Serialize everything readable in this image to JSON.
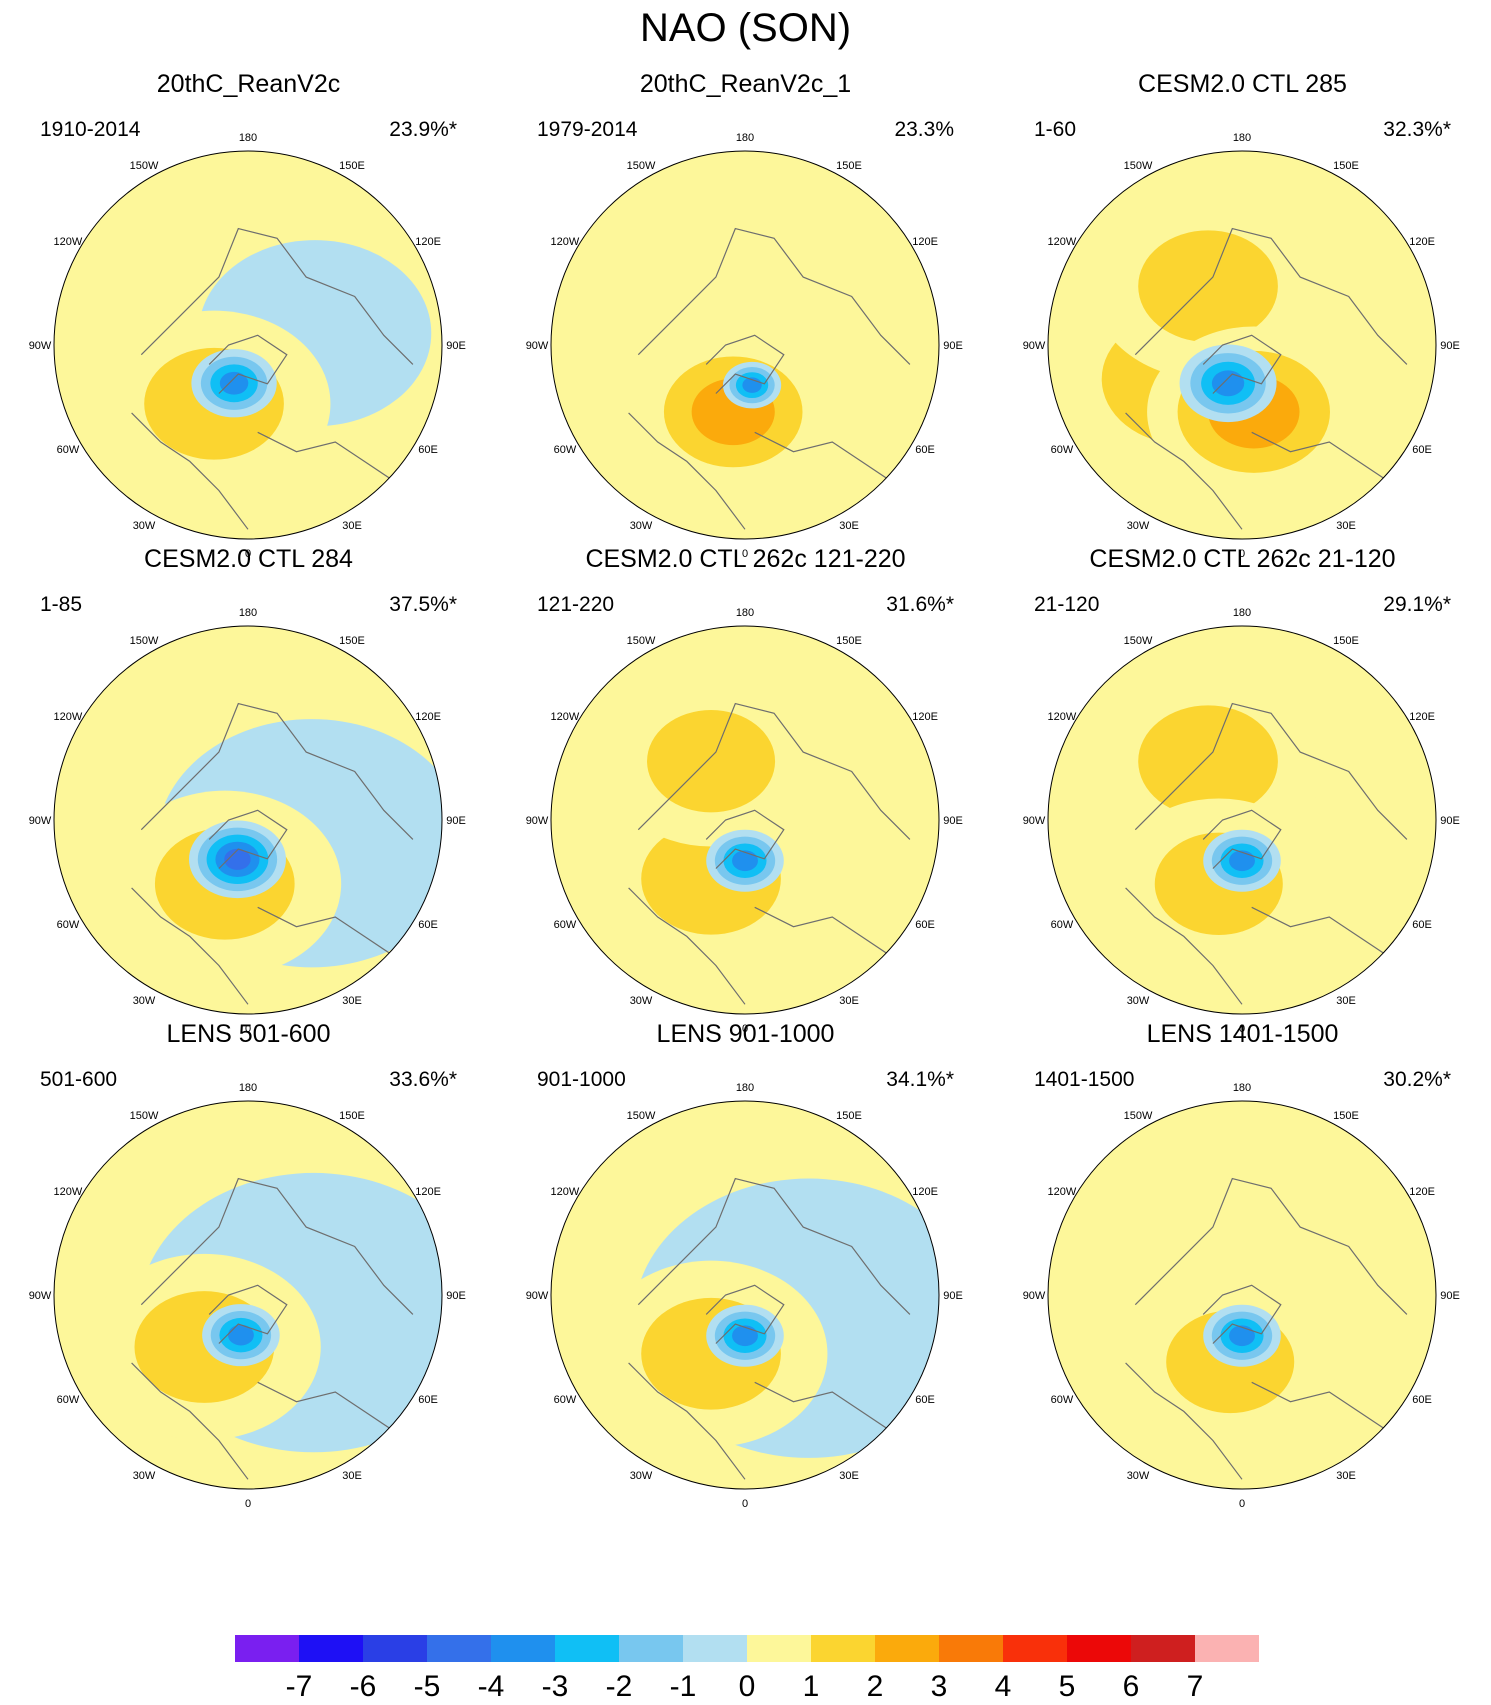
{
  "title": "NAO (SON)",
  "colors": {
    "land_outline": "#6e6e6e",
    "map_border": "#000000",
    "levels": [
      "#7a1ff0",
      "#1e10f5",
      "#2a3fe6",
      "#3470ea",
      "#1f90ee",
      "#10bff5",
      "#78c7ef",
      "#b2dff1",
      "#fdf79a",
      "#fbd530",
      "#fbaa0c",
      "#f97a08",
      "#f9300a",
      "#ec0808",
      "#cf1f1f",
      "#fbb2b2"
    ]
  },
  "chart_data": {
    "type": "contour-map",
    "projection": "north polar stereographic",
    "variable": "NAO (SON) regression pattern",
    "longitude_labels": [
      "180",
      "150E",
      "120E",
      "90E",
      "60E",
      "30E",
      "0",
      "30W",
      "60W",
      "90W",
      "120W",
      "150W"
    ],
    "colorbar": {
      "ticks": [
        "-7",
        "-6",
        "-5",
        "-4",
        "-3",
        "-2",
        "-1",
        "0",
        "1",
        "2",
        "3",
        "4",
        "5",
        "6",
        "7"
      ],
      "boundaries": [
        -7,
        -6,
        -5,
        -4,
        -3,
        -2,
        -1,
        0,
        1,
        2,
        3,
        4,
        5,
        6,
        7
      ]
    },
    "panels": [
      {
        "title": "20thC_ReanV2c",
        "period": "1910-2014",
        "variance": "23.9%*",
        "features": [
          {
            "lon": -20,
            "r": 0.22,
            "value": -3.5
          },
          {
            "lon": 100,
            "r": 0.6,
            "value": -0.5
          },
          {
            "lon": -30,
            "r": 0.6,
            "value": 1.5
          }
        ]
      },
      {
        "title": "20thC_ReanV2c_1",
        "period": "1979-2014",
        "variance": "23.3%",
        "features": [
          {
            "lon": 10,
            "r": 0.15,
            "value": -3.5
          },
          {
            "lon": -10,
            "r": 0.5,
            "value": 2.5
          }
        ]
      },
      {
        "title": "CESM2.0 CTL 285",
        "period": "1-60",
        "variance": "32.3%*",
        "features": [
          {
            "lon": -20,
            "r": 0.25,
            "value": -4
          },
          {
            "lon": 10,
            "r": 0.55,
            "value": 2.5
          },
          {
            "lon": -60,
            "r": 0.7,
            "value": 1.5
          },
          {
            "lon": -150,
            "r": 0.6,
            "value": 1.5
          }
        ]
      },
      {
        "title": "CESM2.0 CTL 284",
        "period": "1-85",
        "variance": "37.5%*",
        "features": [
          {
            "lon": -15,
            "r": 0.25,
            "value": -4.5
          },
          {
            "lon": -20,
            "r": 0.6,
            "value": 1.5
          },
          {
            "lon": 70,
            "r": 0.8,
            "value": -0.5
          }
        ]
      },
      {
        "title": "CESM2.0 CTL 262c 121-220",
        "period": "121-220",
        "variance": "31.6%*",
        "features": [
          {
            "lon": 0,
            "r": 0.2,
            "value": -4
          },
          {
            "lon": -30,
            "r": 0.6,
            "value": 1.5
          },
          {
            "lon": -150,
            "r": 0.55,
            "value": 2
          }
        ]
      },
      {
        "title": "CESM2.0 CTL 262c 21-120",
        "period": "21-120",
        "variance": "29.1%*",
        "features": [
          {
            "lon": 0,
            "r": 0.2,
            "value": -3.5
          },
          {
            "lon": -20,
            "r": 0.55,
            "value": 2
          },
          {
            "lon": -150,
            "r": 0.6,
            "value": 1.5
          }
        ]
      },
      {
        "title": "LENS 501-600",
        "period": "501-600",
        "variance": "33.6%*",
        "features": [
          {
            "lon": -10,
            "r": 0.2,
            "value": -4
          },
          {
            "lon": -40,
            "r": 0.6,
            "value": 1.5
          },
          {
            "lon": 75,
            "r": 0.9,
            "value": -0.5
          }
        ]
      },
      {
        "title": "LENS 901-1000",
        "period": "901-1000",
        "variance": "34.1%*",
        "features": [
          {
            "lon": 0,
            "r": 0.2,
            "value": -4
          },
          {
            "lon": -30,
            "r": 0.6,
            "value": 1.5
          },
          {
            "lon": 70,
            "r": 0.9,
            "value": -0.5
          }
        ]
      },
      {
        "title": "LENS 1401-1500",
        "period": "1401-1500",
        "variance": "30.2%*",
        "features": [
          {
            "lon": 0,
            "r": 0.2,
            "value": -3.5
          },
          {
            "lon": -10,
            "r": 0.55,
            "value": 1.5
          }
        ]
      }
    ]
  }
}
